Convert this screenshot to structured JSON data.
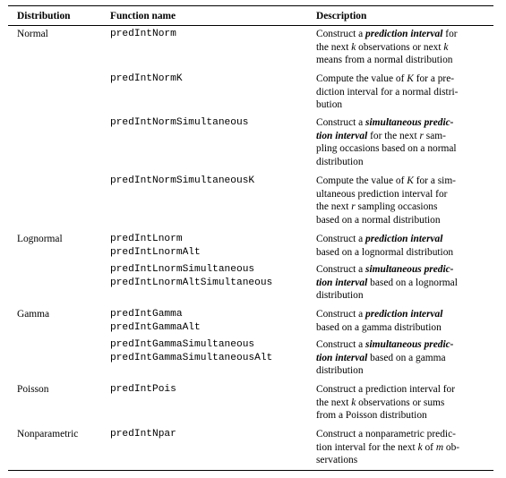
{
  "headers": {
    "distribution": "Distribution",
    "function_name": "Function name",
    "description": "Description"
  },
  "rows": [
    {
      "distribution": "Normal",
      "functions": [
        "predIntNorm"
      ],
      "description": [
        [
          {
            "t": "Construct a "
          },
          {
            "t": "prediction interval",
            "s": "bi"
          },
          {
            "t": " for"
          }
        ],
        [
          {
            "t": "the next "
          },
          {
            "t": "k",
            "s": "i"
          },
          {
            "t": " observations or next "
          },
          {
            "t": "k",
            "s": "i"
          }
        ],
        [
          {
            "t": "means from a normal distribution"
          }
        ]
      ]
    },
    {
      "distribution": "",
      "functions": [
        "predIntNormK"
      ],
      "description": [
        [
          {
            "t": "Compute the value of "
          },
          {
            "t": "K",
            "s": "i"
          },
          {
            "t": " for a pre-"
          }
        ],
        [
          {
            "t": "diction interval for a normal distri-"
          }
        ],
        [
          {
            "t": "bution"
          }
        ]
      ]
    },
    {
      "distribution": "",
      "functions": [
        "predIntNormSimultaneous"
      ],
      "description": [
        [
          {
            "t": "Construct a "
          },
          {
            "t": "simultaneous predic-",
            "s": "bi"
          }
        ],
        [
          {
            "t": "tion interval",
            "s": "bi"
          },
          {
            "t": " for the next "
          },
          {
            "t": "r",
            "s": "i"
          },
          {
            "t": " sam-"
          }
        ],
        [
          {
            "t": "pling occasions based on a normal"
          }
        ],
        [
          {
            "t": "distribution"
          }
        ]
      ]
    },
    {
      "distribution": "",
      "functions": [
        "predIntNormSimultaneousK"
      ],
      "description": [
        [
          {
            "t": "Compute the value of "
          },
          {
            "t": "K",
            "s": "i"
          },
          {
            "t": " for a sim-"
          }
        ],
        [
          {
            "t": "ultaneous prediction interval for"
          }
        ],
        [
          {
            "t": "the next "
          },
          {
            "t": "r",
            "s": "i"
          },
          {
            "t": " sampling occasions"
          }
        ],
        [
          {
            "t": "based on a normal distribution"
          }
        ]
      ]
    },
    {
      "distribution": "Lognormal",
      "functions": [
        "predIntLnorm",
        "predIntLnormAlt"
      ],
      "description": [
        [
          {
            "t": "Construct a "
          },
          {
            "t": "prediction interval",
            "s": "bi"
          }
        ],
        [
          {
            "t": "based on a lognormal distribution"
          }
        ]
      ]
    },
    {
      "distribution": "",
      "functions": [
        "predIntLnormSimultaneous",
        "predIntLnormAltSimultaneous"
      ],
      "description": [
        [
          {
            "t": "Construct a "
          },
          {
            "t": "simultaneous predic-",
            "s": "bi"
          }
        ],
        [
          {
            "t": "tion interval",
            "s": "bi"
          },
          {
            "t": " based on a lognormal"
          }
        ],
        [
          {
            "t": "distribution"
          }
        ]
      ]
    },
    {
      "distribution": "Gamma",
      "functions": [
        "predIntGamma",
        "predIntGammaAlt"
      ],
      "description": [
        [
          {
            "t": "Construct a "
          },
          {
            "t": "prediction interval",
            "s": "bi"
          }
        ],
        [
          {
            "t": "based on a gamma distribution"
          }
        ]
      ]
    },
    {
      "distribution": "",
      "functions": [
        "predIntGammaSimultaneous",
        "predIntGammaSimultaneousAlt"
      ],
      "description": [
        [
          {
            "t": "Construct a "
          },
          {
            "t": "simultaneous predic-",
            "s": "bi"
          }
        ],
        [
          {
            "t": "tion interval",
            "s": "bi"
          },
          {
            "t": " based on a gamma"
          }
        ],
        [
          {
            "t": "distribution"
          }
        ]
      ]
    },
    {
      "distribution": "Poisson",
      "functions": [
        "predIntPois"
      ],
      "description": [
        [
          {
            "t": "Construct a prediction interval for"
          }
        ],
        [
          {
            "t": "the next "
          },
          {
            "t": "k",
            "s": "i"
          },
          {
            "t": " observations or sums"
          }
        ],
        [
          {
            "t": "from a Poisson distribution"
          }
        ]
      ]
    },
    {
      "distribution": "Nonparametric",
      "functions": [
        "predIntNpar"
      ],
      "description": [
        [
          {
            "t": "Construct a nonparametric predic-"
          }
        ],
        [
          {
            "t": "tion interval for the next "
          },
          {
            "t": "k",
            "s": "i"
          },
          {
            "t": " of "
          },
          {
            "t": "m",
            "s": "i"
          },
          {
            "t": " ob-"
          }
        ],
        [
          {
            "t": "servations"
          }
        ]
      ]
    }
  ]
}
